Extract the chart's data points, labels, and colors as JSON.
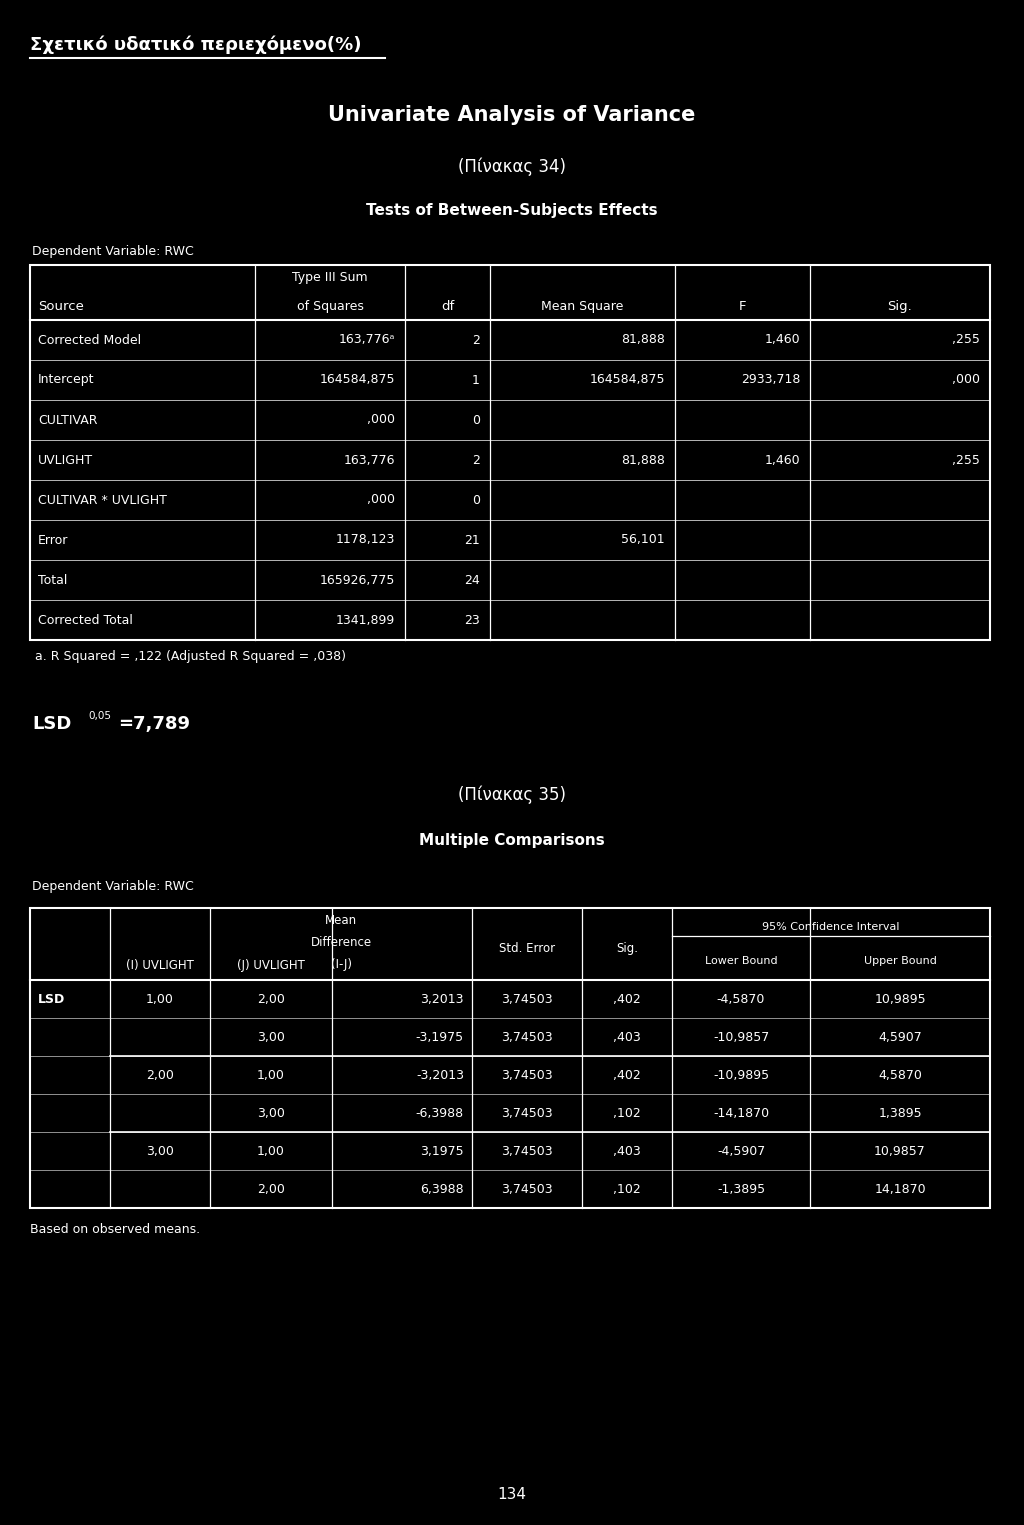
{
  "background_color": "#000000",
  "text_color": "#ffffff",
  "page_title": "Σχετικό υδατικό περιεχόμενο(%)",
  "main_title": "Univariate Analysis of Variance",
  "subtitle1": "(Πίνακας 34)",
  "subtitle2": "Tests of Between-Subjects Effects",
  "dep_var_label1": "Dependent Variable: RWC",
  "table1_rows": [
    [
      "Corrected Model",
      "163,776ᵃ",
      "2",
      "81,888",
      "1,460",
      ",255"
    ],
    [
      "Intercept",
      "164584,875",
      "1",
      "164584,875",
      "2933,718",
      ",000"
    ],
    [
      "CULTIVAR",
      ",000",
      "0",
      "",
      "",
      ""
    ],
    [
      "UVLIGHT",
      "163,776",
      "2",
      "81,888",
      "1,460",
      ",255"
    ],
    [
      "CULTIVAR * UVLIGHT",
      ",000",
      "0",
      "",
      "",
      ""
    ],
    [
      "Error",
      "1178,123",
      "21",
      "56,101",
      "",
      ""
    ],
    [
      "Total",
      "165926,775",
      "24",
      "",
      "",
      ""
    ],
    [
      "Corrected Total",
      "1341,899",
      "23",
      "",
      "",
      ""
    ]
  ],
  "footnote": "a. R Squared = ,122 (Adjusted R Squared = ,038)",
  "lsd_value": "=7,789",
  "subtitle3": "(Πίνακας 35)",
  "subtitle4": "Multiple Comparisons",
  "dep_var_label2": "Dependent Variable: RWC",
  "table2_rows": [
    [
      "LSD",
      "1,00",
      "2,00",
      "3,2013",
      "3,74503",
      ",402",
      "-4,5870",
      "10,9895"
    ],
    [
      "",
      "",
      "3,00",
      "-3,1975",
      "3,74503",
      ",403",
      "-10,9857",
      "4,5907"
    ],
    [
      "",
      "2,00",
      "1,00",
      "-3,2013",
      "3,74503",
      ",402",
      "-10,9895",
      "4,5870"
    ],
    [
      "",
      "",
      "3,00",
      "-6,3988",
      "3,74503",
      ",102",
      "-14,1870",
      "1,3895"
    ],
    [
      "",
      "3,00",
      "1,00",
      "3,1975",
      "3,74503",
      ",403",
      "-4,5907",
      "10,9857"
    ],
    [
      "",
      "",
      "2,00",
      "6,3988",
      "3,74503",
      ",102",
      "-1,3895",
      "14,1870"
    ]
  ],
  "table2_footnote": "Based on observed means.",
  "page_number": "134"
}
